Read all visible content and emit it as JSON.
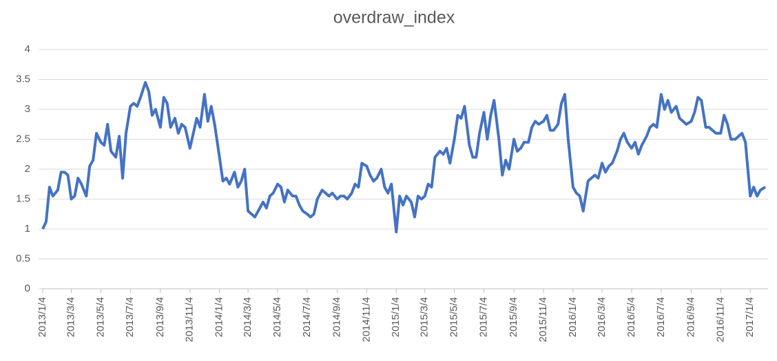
{
  "chart_data": {
    "type": "line",
    "title": "overdraw_index",
    "x": [
      "2013/1/4",
      "2013/1/11",
      "2013/1/18",
      "2013/1/25",
      "2013/2/4",
      "2013/2/11",
      "2013/2/18",
      "2013/2/25",
      "2013/3/4",
      "2013/3/11",
      "2013/3/18",
      "2013/3/25",
      "2013/4/4",
      "2013/4/11",
      "2013/4/18",
      "2013/4/25",
      "2013/5/4",
      "2013/5/11",
      "2013/5/18",
      "2013/5/25",
      "2013/6/4",
      "2013/6/11",
      "2013/6/18",
      "2013/6/25",
      "2013/7/4",
      "2013/7/11",
      "2013/7/18",
      "2013/7/25",
      "2013/8/4",
      "2013/8/11",
      "2013/8/18",
      "2013/8/25",
      "2013/9/4",
      "2013/9/11",
      "2013/9/18",
      "2013/9/25",
      "2013/10/4",
      "2013/10/11",
      "2013/10/18",
      "2013/10/25",
      "2013/11/4",
      "2013/11/11",
      "2013/11/18",
      "2013/11/25",
      "2013/12/4",
      "2013/12/11",
      "2013/12/18",
      "2013/12/25",
      "2014/1/4",
      "2014/1/11",
      "2014/1/18",
      "2014/1/25",
      "2014/2/4",
      "2014/2/11",
      "2014/2/18",
      "2014/2/25",
      "2014/3/4",
      "2014/3/11",
      "2014/3/18",
      "2014/3/25",
      "2014/4/4",
      "2014/4/11",
      "2014/4/18",
      "2014/4/25",
      "2014/5/4",
      "2014/5/11",
      "2014/5/18",
      "2014/5/25",
      "2014/6/4",
      "2014/6/11",
      "2014/6/18",
      "2014/6/25",
      "2014/7/4",
      "2014/7/11",
      "2014/7/18",
      "2014/7/25",
      "2014/8/4",
      "2014/8/11",
      "2014/8/18",
      "2014/8/25",
      "2014/9/4",
      "2014/9/11",
      "2014/9/18",
      "2014/9/25",
      "2014/10/4",
      "2014/10/11",
      "2014/10/18",
      "2014/10/25",
      "2014/11/4",
      "2014/11/11",
      "2014/11/18",
      "2014/11/25",
      "2014/12/4",
      "2014/12/11",
      "2014/12/18",
      "2014/12/25",
      "2015/1/4",
      "2015/1/11",
      "2015/1/18",
      "2015/1/25",
      "2015/2/4",
      "2015/2/11",
      "2015/2/18",
      "2015/2/25",
      "2015/3/4",
      "2015/3/11",
      "2015/3/18",
      "2015/3/25",
      "2015/4/4",
      "2015/4/11",
      "2015/4/18",
      "2015/4/25",
      "2015/5/4",
      "2015/5/11",
      "2015/5/18",
      "2015/5/25",
      "2015/6/4",
      "2015/6/11",
      "2015/6/18",
      "2015/6/25",
      "2015/7/4",
      "2015/7/11",
      "2015/7/18",
      "2015/7/25",
      "2015/8/4",
      "2015/8/11",
      "2015/8/18",
      "2015/8/25",
      "2015/9/4",
      "2015/9/11",
      "2015/9/18",
      "2015/9/25",
      "2015/10/4",
      "2015/10/11",
      "2015/10/18",
      "2015/10/25",
      "2015/11/4",
      "2015/11/11",
      "2015/11/18",
      "2015/11/25",
      "2015/12/4",
      "2015/12/11",
      "2015/12/18",
      "2015/12/25",
      "2016/1/4",
      "2016/1/11",
      "2016/1/18",
      "2016/1/25",
      "2016/2/4",
      "2016/2/11",
      "2016/2/18",
      "2016/2/25",
      "2016/3/4",
      "2016/3/11",
      "2016/3/18",
      "2016/3/25",
      "2016/4/4",
      "2016/4/11",
      "2016/4/18",
      "2016/4/25",
      "2016/5/4",
      "2016/5/11",
      "2016/5/18",
      "2016/5/25",
      "2016/6/4",
      "2016/6/11",
      "2016/6/18",
      "2016/6/25",
      "2016/7/4",
      "2016/7/11",
      "2016/7/18",
      "2016/7/25",
      "2016/8/4",
      "2016/8/11",
      "2016/8/18",
      "2016/8/25",
      "2016/9/4",
      "2016/9/11",
      "2016/9/18",
      "2016/9/25",
      "2016/10/4",
      "2016/10/11",
      "2016/10/18",
      "2016/10/25",
      "2016/11/4",
      "2016/11/11",
      "2016/11/18",
      "2016/11/25",
      "2016/12/4",
      "2016/12/11",
      "2016/12/18",
      "2016/12/25",
      "2017/1/4",
      "2017/1/11",
      "2017/1/18",
      "2017/1/25",
      "2017/2/4"
    ],
    "series": [
      {
        "name": "overdraw_index",
        "color": "#4472c4",
        "values": [
          1.0,
          1.12,
          1.7,
          1.55,
          1.65,
          1.95,
          1.95,
          1.9,
          1.5,
          1.55,
          1.85,
          1.75,
          1.55,
          2.05,
          2.15,
          2.6,
          2.45,
          2.4,
          2.75,
          2.3,
          2.2,
          2.55,
          1.85,
          2.6,
          3.05,
          3.1,
          3.05,
          3.2,
          3.45,
          3.3,
          2.9,
          3.0,
          2.7,
          3.2,
          3.1,
          2.7,
          2.85,
          2.6,
          2.75,
          2.7,
          2.35,
          2.6,
          2.85,
          2.7,
          3.25,
          2.8,
          3.05,
          2.75,
          2.2,
          1.8,
          1.85,
          1.75,
          1.95,
          1.7,
          1.8,
          2.0,
          1.3,
          1.25,
          1.2,
          1.3,
          1.45,
          1.35,
          1.55,
          1.6,
          1.75,
          1.7,
          1.45,
          1.65,
          1.55,
          1.55,
          1.4,
          1.3,
          1.25,
          1.2,
          1.25,
          1.5,
          1.65,
          1.6,
          1.55,
          1.6,
          1.5,
          1.55,
          1.55,
          1.5,
          1.6,
          1.75,
          1.7,
          2.1,
          2.05,
          1.9,
          1.8,
          1.85,
          2.0,
          1.7,
          1.6,
          1.75,
          0.95,
          1.55,
          1.4,
          1.55,
          1.45,
          1.2,
          1.55,
          1.5,
          1.55,
          1.75,
          1.7,
          2.2,
          2.3,
          2.25,
          2.35,
          2.1,
          2.5,
          2.9,
          2.85,
          3.05,
          2.4,
          2.2,
          2.2,
          2.6,
          2.95,
          2.5,
          2.9,
          3.15,
          2.5,
          1.9,
          2.15,
          2.0,
          2.5,
          2.3,
          2.35,
          2.45,
          2.45,
          2.7,
          2.8,
          2.75,
          2.8,
          2.9,
          2.65,
          2.65,
          2.75,
          3.1,
          3.25,
          2.5,
          1.7,
          1.6,
          1.55,
          1.3,
          1.8,
          1.85,
          1.9,
          1.85,
          2.1,
          1.95,
          2.05,
          2.1,
          2.3,
          2.5,
          2.6,
          2.45,
          2.35,
          2.45,
          2.25,
          2.4,
          2.55,
          2.7,
          2.75,
          2.7,
          3.25,
          3.0,
          3.15,
          2.95,
          3.05,
          2.85,
          2.8,
          2.75,
          2.8,
          2.95,
          3.2,
          3.15,
          2.7,
          2.7,
          2.65,
          2.6,
          2.6,
          2.9,
          2.75,
          2.5,
          2.5,
          2.55,
          2.6,
          2.45,
          1.55,
          1.7,
          1.55,
          1.65,
          1.7
        ]
      }
    ],
    "xlim": [
      "2013/1/4",
      "2017/2/4"
    ],
    "xticks": [
      "2013/1/4",
      "2013/3/4",
      "2013/5/4",
      "2013/7/4",
      "2013/9/4",
      "2013/11/4",
      "2014/1/4",
      "2014/3/4",
      "2014/5/4",
      "2014/7/4",
      "2014/9/4",
      "2014/11/4",
      "2015/1/4",
      "2015/3/4",
      "2015/5/4",
      "2015/7/4",
      "2015/9/4",
      "2015/11/4",
      "2016/1/4",
      "2016/3/4",
      "2016/5/4",
      "2016/7/4",
      "2016/9/4",
      "2016/11/4",
      "2017/1/4"
    ],
    "ylim": [
      0,
      4
    ],
    "yticks": [
      0,
      0.5,
      1,
      1.5,
      2,
      2.5,
      3,
      3.5,
      4
    ],
    "grid": true
  }
}
